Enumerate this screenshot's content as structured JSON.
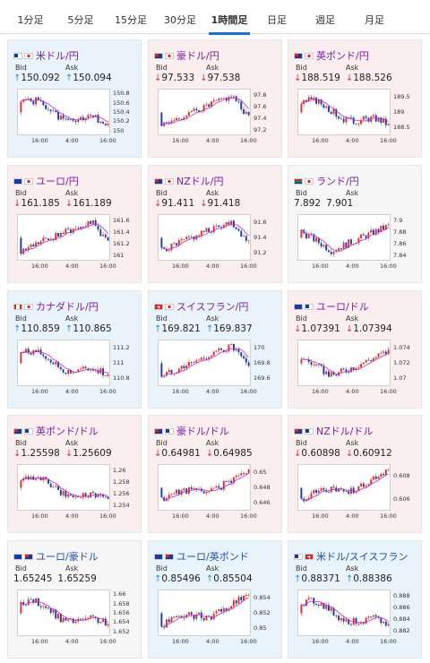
{
  "tabs": [
    {
      "label": "1分足",
      "active": false
    },
    {
      "label": "5分足",
      "active": false
    },
    {
      "label": "15分足",
      "active": false
    },
    {
      "label": "30分足",
      "active": false
    },
    {
      "label": "1時間足",
      "active": true
    },
    {
      "label": "日足",
      "active": false
    },
    {
      "label": "週足",
      "active": false
    },
    {
      "label": "月足",
      "active": false
    }
  ],
  "labels": {
    "bid": "Bid",
    "ask": "Ask"
  },
  "x_ticks": [
    "16:00",
    "4:00",
    "16:00"
  ],
  "colors": {
    "up_bg": "#e9f3fb",
    "down_bg": "#fbeeee",
    "bull": "#d8342f",
    "bear": "#1f3f9e",
    "ma": "#c928c9"
  },
  "cards": [
    {
      "name": "米ドル/円",
      "color": "purple",
      "bg": "up",
      "flags": [
        "us",
        "jp"
      ],
      "dir": "up",
      "bid": "150.092",
      "ask": "150.094",
      "yticks": [
        "150.8",
        "150.6",
        "150.4",
        "150.2",
        "150"
      ],
      "seed": 1,
      "trend": "down"
    },
    {
      "name": "豪ドル/円",
      "color": "purple",
      "bg": "down",
      "flags": [
        "au",
        "jp"
      ],
      "dir": "down",
      "bid": "97.533",
      "ask": "97.538",
      "yticks": [
        "97.8",
        "97.6",
        "97.4",
        "97.2"
      ],
      "seed": 2,
      "trend": "upthendown"
    },
    {
      "name": "英ポンド/円",
      "color": "purple",
      "bg": "down",
      "flags": [
        "gb",
        "jp"
      ],
      "dir": "down",
      "bid": "188.519",
      "ask": "188.526",
      "yticks": [
        "189.5",
        "189",
        "188.5"
      ],
      "seed": 3,
      "trend": "down"
    },
    {
      "name": "ユーロ/円",
      "color": "purple",
      "bg": "down",
      "flags": [
        "eu",
        "jp"
      ],
      "dir": "down",
      "bid": "161.185",
      "ask": "161.189",
      "yticks": [
        "161.6",
        "161.4",
        "161.2",
        "161"
      ],
      "seed": 4,
      "trend": "upthendown"
    },
    {
      "name": "NZドル/円",
      "color": "purple",
      "bg": "down",
      "flags": [
        "nz",
        "jp"
      ],
      "dir": "down",
      "bid": "91.411",
      "ask": "91.418",
      "yticks": [
        "91.6",
        "91.4",
        "91.2"
      ],
      "seed": 5,
      "trend": "upthendown"
    },
    {
      "name": "ランド/円",
      "color": "purple",
      "bg": "flat",
      "flags": [
        "za",
        "jp"
      ],
      "dir": "none",
      "bid": "7.892",
      "ask": "7.901",
      "yticks": [
        "7.9",
        "7.88",
        "7.86",
        "7.84"
      ],
      "seed": 6,
      "trend": "dipthenup"
    },
    {
      "name": "カナダドル/円",
      "color": "purple",
      "bg": "up",
      "flags": [
        "ca",
        "jp"
      ],
      "dir": "up",
      "bid": "110.859",
      "ask": "110.865",
      "yticks": [
        "111.2",
        "111",
        "110.8"
      ],
      "seed": 7,
      "trend": "down"
    },
    {
      "name": "スイスフラン/円",
      "color": "purple",
      "bg": "up",
      "flags": [
        "ch",
        "jp"
      ],
      "dir": "up",
      "bid": "169.821",
      "ask": "169.837",
      "yticks": [
        "170",
        "169.8",
        "169.6"
      ],
      "seed": 8,
      "trend": "upthendown"
    },
    {
      "name": "ユーロ/ドル",
      "color": "purple",
      "bg": "down",
      "flags": [
        "eu",
        "us"
      ],
      "dir": "down",
      "bid": "1.07391",
      "ask": "1.07394",
      "yticks": [
        "1.074",
        "1.072",
        "1.07"
      ],
      "seed": 9,
      "trend": "dipthenup"
    },
    {
      "name": "英ポンド/ドル",
      "color": "purple",
      "bg": "down",
      "flags": [
        "gb",
        "us"
      ],
      "dir": "down",
      "bid": "1.25598",
      "ask": "1.25609",
      "yticks": [
        "1.26",
        "1.258",
        "1.256",
        "1.254"
      ],
      "seed": 10,
      "trend": "down"
    },
    {
      "name": "豪ドル/ドル",
      "color": "purple",
      "bg": "down",
      "flags": [
        "au",
        "us"
      ],
      "dir": "down",
      "bid": "0.64981",
      "ask": "0.64985",
      "yticks": [
        "0.65",
        "0.648",
        "0.646"
      ],
      "seed": 11,
      "trend": "up"
    },
    {
      "name": "NZドル/ドル",
      "color": "purple",
      "bg": "down",
      "flags": [
        "nz",
        "us"
      ],
      "dir": "down",
      "bid": "0.60898",
      "ask": "0.60912",
      "yticks": [
        "0.608",
        "0.606"
      ],
      "seed": 12,
      "trend": "up"
    },
    {
      "name": "ユーロ/豪ドル",
      "color": "blue",
      "bg": "flat",
      "flags": [
        "eu",
        "au"
      ],
      "dir": "none",
      "bid": "1.65245",
      "ask": "1.65259",
      "yticks": [
        "1.66",
        "1.658",
        "1.656",
        "1.654",
        "1.652"
      ],
      "seed": 13,
      "trend": "down"
    },
    {
      "name": "ユーロ/英ポンド",
      "color": "blue",
      "bg": "up",
      "flags": [
        "eu",
        "gb"
      ],
      "dir": "up",
      "bid": "0.85496",
      "ask": "0.85504",
      "yticks": [
        "0.854",
        "0.852",
        "0.85"
      ],
      "seed": 14,
      "trend": "up"
    },
    {
      "name": "米ドル/スイスフラン",
      "color": "blue",
      "bg": "up",
      "flags": [
        "us",
        "ch"
      ],
      "dir": "up",
      "bid": "0.88371",
      "ask": "0.88386",
      "yticks": [
        "0.888",
        "0.886",
        "0.884",
        "0.882"
      ],
      "seed": 15,
      "trend": "down"
    }
  ]
}
